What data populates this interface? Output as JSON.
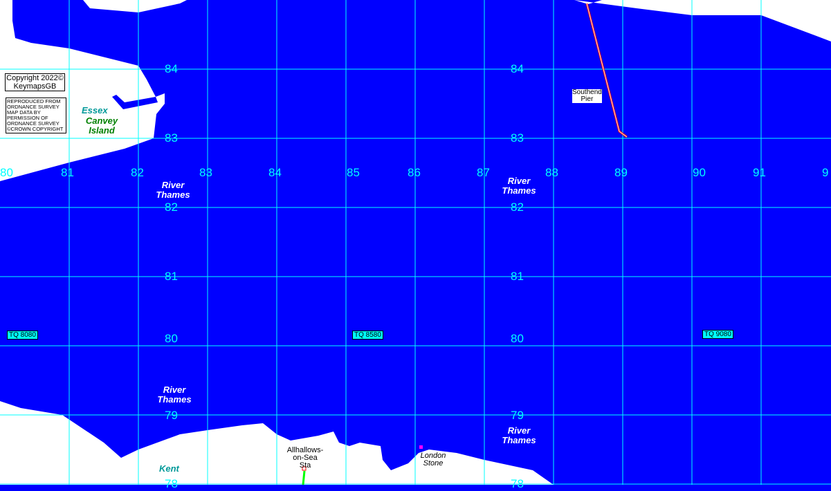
{
  "colors": {
    "water": "#0000ff",
    "land": "#ffffff",
    "grid": "#00ffff",
    "pier": "#ff0000",
    "railway": "#00ff00",
    "marker": "#ff00ff"
  },
  "copyright": {
    "line1": "Copyright 2022©",
    "line2": "KeymapsGB"
  },
  "os_notice": [
    "REPRODUCED FROM",
    "ORDNANCE SURVEY",
    "MAP DATA BY",
    "PERMISSION OF",
    "ORDNANCE SURVEY",
    "©CROWN COPYRIGHT"
  ],
  "eastings": [
    "80",
    "81",
    "82",
    "83",
    "84",
    "85",
    "86",
    "87",
    "88",
    "89",
    "90",
    "91",
    "9"
  ],
  "northings": [
    "84",
    "83",
    "82",
    "81",
    "80",
    "79",
    "78"
  ],
  "grid_refs": [
    "TQ 8080",
    "TQ 8580",
    "TQ 9080"
  ],
  "places": {
    "essex": "Essex",
    "canvey1": "Canvey",
    "canvey2": "Island",
    "kent": "Kent",
    "thames1a": "River",
    "thames1b": "Thames",
    "pier1": "Southend",
    "pier2": "Pier",
    "allhallows1": "Allhallows-",
    "allhallows2": "on-Sea",
    "allhallows3": "Sta",
    "london1": "London",
    "london2": "Stone"
  }
}
